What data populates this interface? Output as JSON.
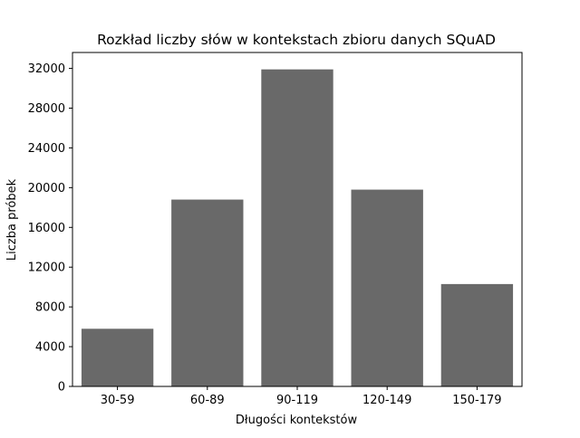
{
  "chart_data": {
    "type": "bar",
    "title": "Rozkład liczby słów w kontekstach zbioru danych SQuAD",
    "xlabel": "Długości kontekstów",
    "ylabel": "Liczba próbek",
    "categories": [
      "30-59",
      "60-89",
      "90-119",
      "120-149",
      "150-179"
    ],
    "values": [
      5800,
      18800,
      31900,
      19800,
      10300
    ],
    "ylim": [
      0,
      33600
    ],
    "yticks": [
      0,
      4000,
      8000,
      12000,
      16000,
      20000,
      24000,
      28000,
      32000
    ],
    "bar_color": "#696969",
    "grid": false,
    "legend": "none"
  }
}
